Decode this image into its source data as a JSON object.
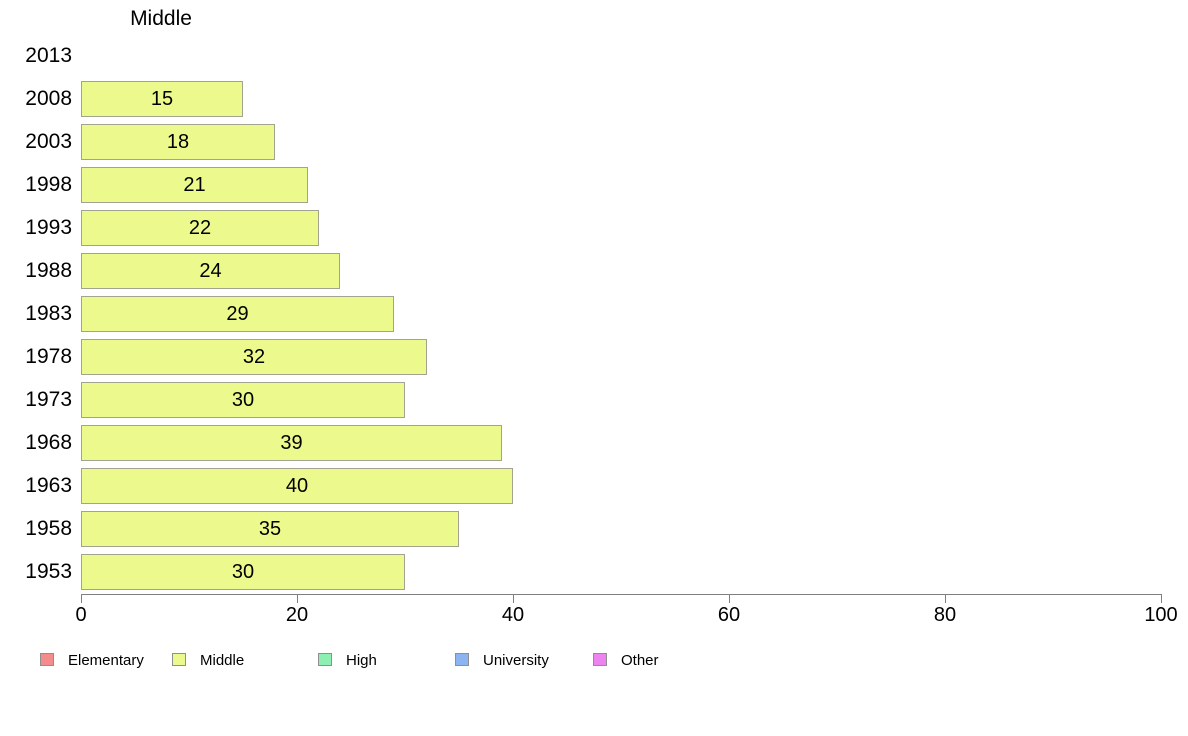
{
  "title": "Middle",
  "colors": {
    "background": "#ffffff",
    "bar_fill": "#ecfa8d",
    "bar_border": "#a3a38f",
    "axis": "#7f7f7f",
    "text": "#000000"
  },
  "chart_data": {
    "type": "bar",
    "orientation": "horizontal",
    "title": "Middle",
    "series_name": "Middle",
    "categories": [
      "2013",
      "2008",
      "2003",
      "1998",
      "1993",
      "1988",
      "1983",
      "1978",
      "1973",
      "1968",
      "1963",
      "1958",
      "1953"
    ],
    "values": [
      null,
      15,
      18,
      21,
      22,
      24,
      29,
      32,
      30,
      39,
      40,
      35,
      30
    ],
    "data_labels_shown": true,
    "xlabel": "",
    "ylabel": "",
    "xlim": [
      0,
      100
    ],
    "x_ticks": [
      0,
      20,
      40,
      60,
      80,
      100
    ],
    "grid": false,
    "legend_position": "bottom",
    "legend": [
      {
        "label": "Elementary",
        "color": "#f58c8c"
      },
      {
        "label": "Middle",
        "color": "#ecfa8d"
      },
      {
        "label": "High",
        "color": "#8df0b2"
      },
      {
        "label": "University",
        "color": "#8cb4f0"
      },
      {
        "label": "Other",
        "color": "#ee82ee"
      }
    ]
  }
}
